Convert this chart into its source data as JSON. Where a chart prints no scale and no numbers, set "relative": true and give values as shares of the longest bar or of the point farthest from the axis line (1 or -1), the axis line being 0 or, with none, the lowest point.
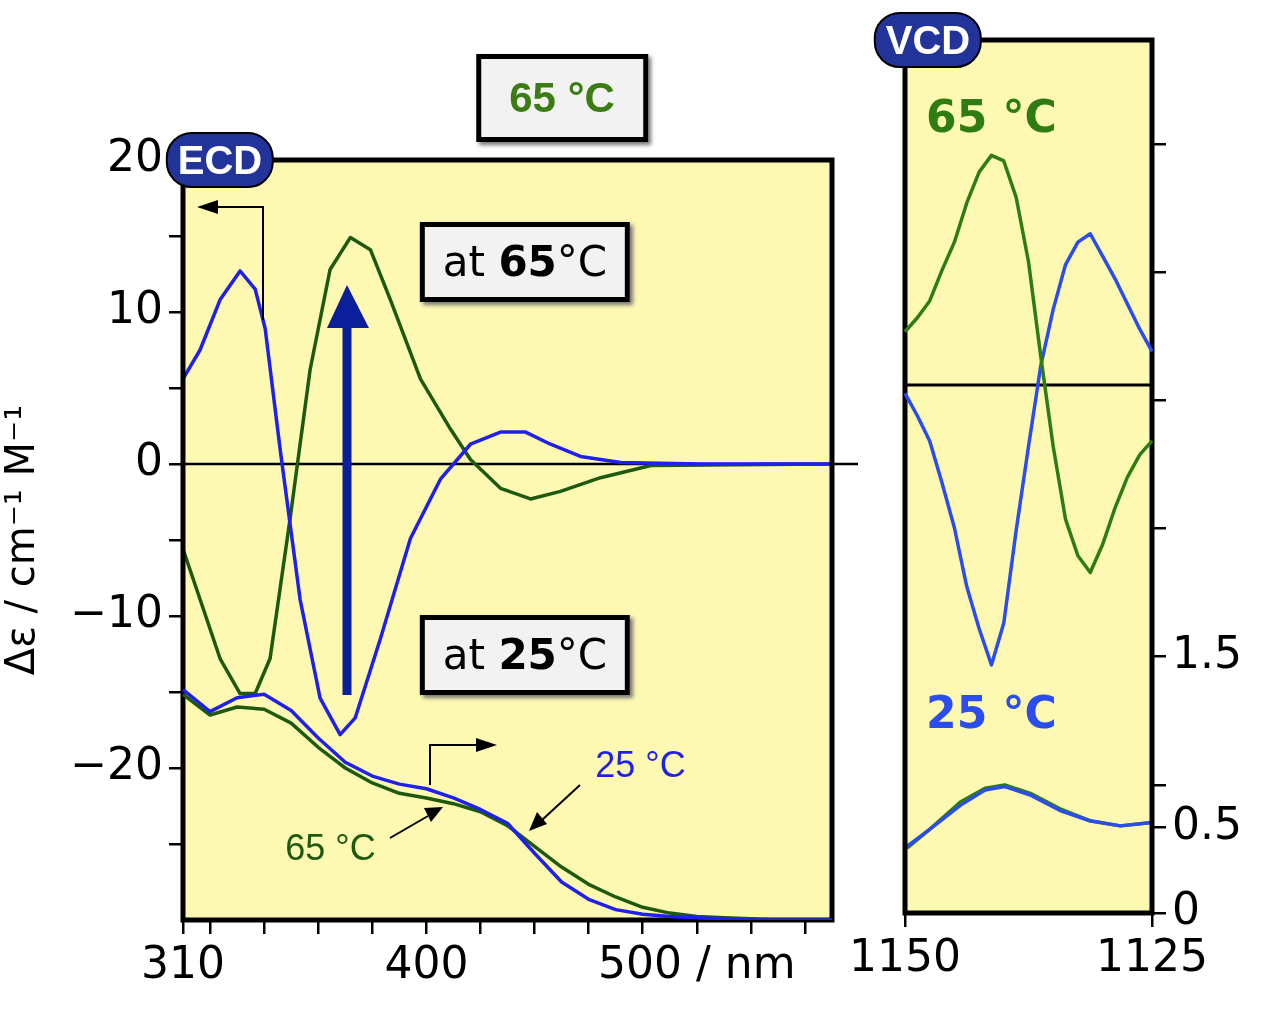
{
  "chart_data": [
    {
      "type": "line",
      "title": "65 °C",
      "ylabel": "Δε / cm⁻¹ M⁻¹",
      "subtitle": "ECD",
      "annotations": [
        "at 65°C",
        "at 25°C"
      ],
      "marker": "none",
      "xlim": [
        310,
        550
      ],
      "xticks": [
        310,
        {
          "value": 320,
          "label": null
        },
        {
          "value": 340,
          "label": null
        },
        {
          "value": 360,
          "label": null
        },
        {
          "value": 380,
          "label": null
        },
        400,
        {
          "value": 420,
          "label": null
        },
        {
          "value": 440,
          "label": null
        },
        {
          "value": 460,
          "label": null
        },
        {
          "value": 480,
          "label": null
        },
        {
          "value": 500,
          "label": "500 / nm"
        },
        {
          "value": 520,
          "label": null
        },
        {
          "value": 540,
          "label": null
        }
      ],
      "ylim": [
        -30,
        20
      ],
      "yticks": [
        {
          "value": -25,
          "label": null
        },
        {
          "value": -20,
          "label": "−20"
        },
        {
          "value": -15,
          "label": null
        },
        {
          "value": -10,
          "label": "−10"
        },
        {
          "value": -5,
          "label": null
        },
        0,
        {
          "value": 5,
          "label": null
        },
        10,
        {
          "value": 15,
          "label": null
        },
        20
      ],
      "ref_lines": [
        {
          "axis": "y",
          "value": 0,
          "color": "#000000"
        }
      ],
      "series": [
        {
          "color": "#1f1ff0",
          "x": [
            310,
            316.3,
            323.7,
            331.1,
            336.7,
            340.4,
            345.9,
            353.3,
            360.7,
            368.1,
            373.7,
            383,
            394.1,
            405.2,
            416.3,
            427.4,
            436.7,
            445.9,
            457,
            471.9,
            501.5,
            550
          ],
          "values": [
            5.6,
            7.5,
            10.8,
            12.7,
            11.5,
            8.9,
            1,
            -8.9,
            -15.4,
            -17.8,
            -16.7,
            -11.5,
            -4.9,
            -1,
            1.3,
            2.1,
            2.1,
            1.3,
            0.5,
            0.1,
            0,
            0
          ]
        },
        {
          "color": "#1e5a0e",
          "x": [
            310,
            316.3,
            323.7,
            331.1,
            336.7,
            342.2,
            349.6,
            357,
            364.4,
            371.9,
            379.3,
            386.7,
            397.8,
            408.9,
            416.3,
            427.4,
            438.5,
            449.6,
            464.4,
            483,
            550
          ],
          "values": [
            -5.6,
            -8.9,
            -12.8,
            -15.1,
            -15.1,
            -12.8,
            -3.6,
            6.2,
            12.8,
            14.9,
            14.1,
            10.8,
            5.6,
            2.3,
            0.3,
            -1.6,
            -2.3,
            -1.8,
            -0.9,
            -0.1,
            0
          ]
        }
      ]
    },
    {
      "type": "line",
      "relative": true,
      "marker": "none",
      "categories": [
        null,
        null,
        null,
        null,
        null,
        null,
        null,
        null,
        null,
        null,
        null,
        null,
        null,
        null,
        null,
        null,
        null,
        null,
        null,
        null,
        null,
        null,
        null,
        null,
        null
      ],
      "series": [
        {
          "name": "25 °C",
          "color": "#1f1ff0",
          "values": [
            1,
            0.905,
            0.965,
            0.98,
            0.91,
            0.79,
            0.685,
            0.625,
            0.59,
            0.57,
            0.53,
            0.48,
            0.42,
            0.29,
            0.165,
            0.09,
            0.045,
            0.025,
            0.015,
            0.01,
            0.005,
            0,
            0,
            0,
            0
          ]
        },
        {
          "name": "65 °C",
          "color": "#1e5a0e",
          "values": [
            0.98,
            0.89,
            0.925,
            0.915,
            0.855,
            0.75,
            0.66,
            0.595,
            0.55,
            0.53,
            0.505,
            0.47,
            0.41,
            0.32,
            0.23,
            0.155,
            0.1,
            0.055,
            0.03,
            0.015,
            0.01,
            0.005,
            0,
            0,
            0
          ]
        }
      ]
    },
    {
      "type": "line",
      "title": "VCD",
      "relative": true,
      "marker": "none",
      "categories": [
        null,
        null,
        null,
        null,
        null,
        null,
        null,
        null,
        null,
        null,
        null,
        null,
        null,
        null,
        null,
        null,
        null,
        null,
        null,
        null,
        null
      ],
      "series": [
        {
          "name": "65 °C",
          "color": "#2f7d12",
          "values": [
            0.19,
            0.24,
            0.3,
            0.41,
            0.51,
            0.65,
            0.76,
            0.82,
            0.8,
            0.67,
            0.44,
            0.1,
            -0.22,
            -0.48,
            -0.61,
            -0.67,
            -0.57,
            -0.44,
            -0.33,
            -0.25,
            -0.2
          ]
        },
        {
          "name": "25 °C",
          "color": "#2a4cf0",
          "values": [
            -0.03,
            -0.11,
            -0.2,
            -0.35,
            -0.51,
            -0.72,
            -0.87,
            -1,
            -0.85,
            -0.52,
            -0.22,
            0.07,
            0.27,
            0.43,
            0.51,
            0.54,
            0.46,
            0.38,
            0.29,
            0.2,
            0.12
          ]
        }
      ]
    },
    {
      "type": "line",
      "xlim": [
        1150,
        1125
      ],
      "xticks": [
        1150,
        1125
      ],
      "ylim": [
        0,
        5.11
      ],
      "yticks": [
        0,
        0.5,
        {
          "value": 0.75,
          "label": null
        },
        1.5,
        {
          "value": 2.25,
          "label": null
        },
        {
          "value": 3,
          "label": null
        },
        {
          "value": 3.75,
          "label": null
        },
        {
          "value": 4.5,
          "label": null
        }
      ],
      "marker": "none",
      "series": [
        {
          "color": "#2a4cf0",
          "x": [
            1149.8,
            1147.5,
            1144.4,
            1141.9,
            1139.9,
            1137.3,
            1134.3,
            1131.3,
            1128.2,
            1125
          ],
          "values": [
            0.39,
            0.49,
            0.63,
            0.72,
            0.74,
            0.69,
            0.6,
            0.54,
            0.51,
            0.53
          ]
        },
        {
          "color": "#2f7d12",
          "x": [
            1149.8,
            1147.5,
            1144.4,
            1141.9,
            1139.9,
            1137.3,
            1134.3,
            1131.3,
            1128.2,
            1125
          ],
          "values": [
            0.38,
            0.49,
            0.65,
            0.73,
            0.75,
            0.7,
            0.61,
            0.54,
            0.51,
            0.53
          ]
        }
      ]
    }
  ]
}
